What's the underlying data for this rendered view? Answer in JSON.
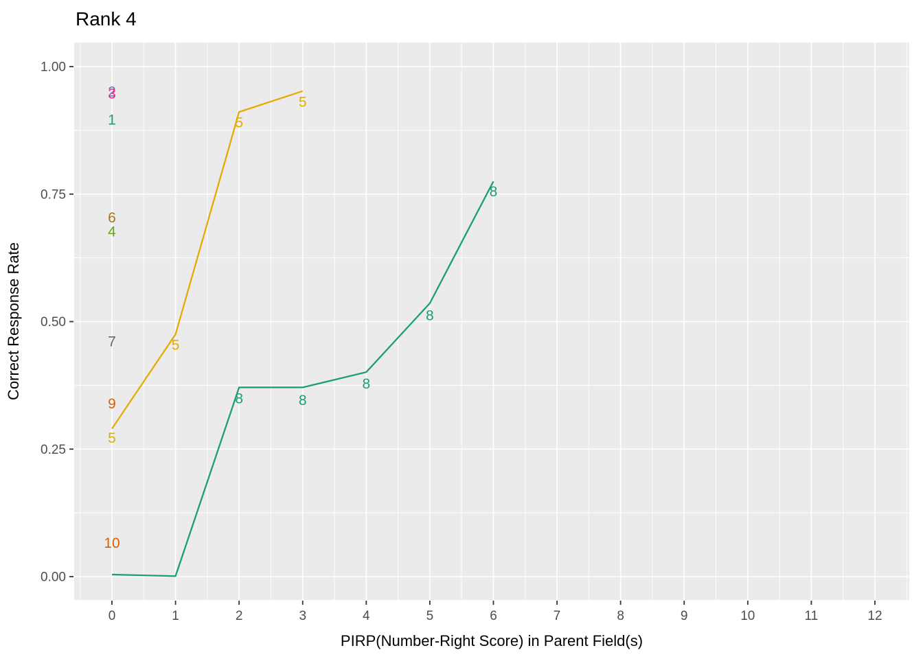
{
  "chart_data": {
    "type": "line",
    "title": "Rank 4",
    "xlabel": "PIRP(Number-Right Score) in Parent Field(s)",
    "ylabel": "Correct Response Rate",
    "panel_bg": "#EBEBEB",
    "grid_color": "#FFFFFF",
    "tick_color": "#333333",
    "tick_label_color": "#4D4D4D",
    "xlim": [
      -0.6,
      12.6
    ],
    "ylim": [
      -0.046,
      1.047
    ],
    "x_ticks": [
      {
        "value": 0,
        "label": "0"
      },
      {
        "value": 1,
        "label": "1"
      },
      {
        "value": 2,
        "label": "2"
      },
      {
        "value": 3,
        "label": "3"
      },
      {
        "value": 4,
        "label": "4"
      },
      {
        "value": 5,
        "label": "5"
      },
      {
        "value": 6,
        "label": "6"
      },
      {
        "value": 7,
        "label": "7"
      },
      {
        "value": 8,
        "label": "8"
      },
      {
        "value": 9,
        "label": "9"
      },
      {
        "value": 10,
        "label": "10"
      },
      {
        "value": 11,
        "label": "11"
      },
      {
        "value": 12,
        "label": "12"
      }
    ],
    "y_ticks": [
      {
        "value": 0.0,
        "label": "0.00"
      },
      {
        "value": 0.25,
        "label": "0.25"
      },
      {
        "value": 0.5,
        "label": "0.50"
      },
      {
        "value": 0.75,
        "label": "0.75"
      },
      {
        "value": 1.0,
        "label": "1.00"
      }
    ],
    "x_minor": [
      -0.5,
      0.5,
      1.5,
      2.5,
      3.5,
      4.5,
      5.5,
      6.5,
      7.5,
      8.5,
      9.5,
      10.5,
      11.5,
      12.5
    ],
    "y_minor": [
      0.125,
      0.375,
      0.625,
      0.875
    ],
    "series": [
      {
        "name": "5",
        "color": "#E6AB02",
        "line": [
          [
            0,
            0.29
          ],
          [
            1,
            0.475
          ],
          [
            2,
            0.911
          ],
          [
            3,
            0.952
          ]
        ],
        "labels": [
          {
            "x": 1,
            "y": 0.454,
            "text": "5"
          },
          {
            "x": 2,
            "y": 0.89,
            "text": "5"
          },
          {
            "x": 3,
            "y": 0.931,
            "text": "5"
          }
        ]
      },
      {
        "name": "8",
        "color": "#1B9E77",
        "line": [
          [
            0,
            0.004
          ],
          [
            1,
            0.001
          ],
          [
            2,
            0.371
          ],
          [
            3,
            0.371
          ],
          [
            4,
            0.401
          ],
          [
            5,
            0.536
          ],
          [
            6,
            0.775
          ]
        ],
        "labels": [
          {
            "x": 2,
            "y": 0.349,
            "text": "8"
          },
          {
            "x": 3,
            "y": 0.346,
            "text": "8"
          },
          {
            "x": 4,
            "y": 0.378,
            "text": "8"
          },
          {
            "x": 5,
            "y": 0.512,
            "text": "8"
          },
          {
            "x": 6,
            "y": 0.755,
            "text": "8"
          }
        ]
      }
    ],
    "annotations": [
      {
        "text": "2",
        "x": 0,
        "y": 0.951,
        "color": "#7570B3"
      },
      {
        "text": "3",
        "x": 0,
        "y": 0.947,
        "color": "#E7298A"
      },
      {
        "text": "1",
        "x": 0,
        "y": 0.896,
        "color": "#1B9E77"
      },
      {
        "text": "6",
        "x": 0,
        "y": 0.704,
        "color": "#A6761D"
      },
      {
        "text": "4",
        "x": 0,
        "y": 0.676,
        "color": "#66A61E"
      },
      {
        "text": "7",
        "x": 0,
        "y": 0.461,
        "color": "#666666"
      },
      {
        "text": "9",
        "x": 0,
        "y": 0.339,
        "color": "#D95F02"
      },
      {
        "text": "5",
        "x": 0,
        "y": 0.272,
        "color": "#E6AB02"
      },
      {
        "text": "10",
        "x": 0,
        "y": 0.066,
        "color": "#D95F02"
      }
    ]
  }
}
